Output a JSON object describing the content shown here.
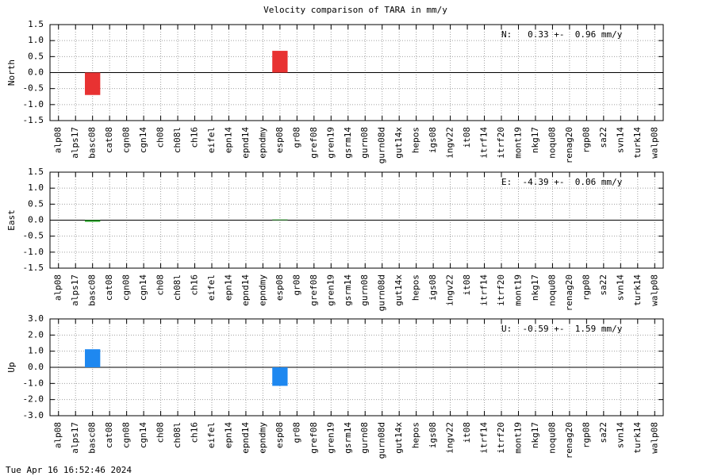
{
  "title": "Velocity comparison of TARA in mm/y",
  "timestamp": "Tue Apr 16 16:52:46 2024",
  "chart_data": [
    {
      "type": "bar",
      "ylabel": "North",
      "categories": [
        "alp08",
        "alps17",
        "basc08",
        "cat08",
        "cgn08",
        "cgn14",
        "ch08",
        "ch08l",
        "ch16",
        "eifel",
        "epn14",
        "epnd14",
        "epndmy",
        "esp08",
        "gr08",
        "gref08",
        "gren19",
        "gsrm14",
        "gurn08",
        "gurn08d",
        "gut14x",
        "hepos",
        "igs08",
        "ingv22",
        "it08",
        "itrf14",
        "itrf20",
        "mont19",
        "nkg17",
        "noqu08",
        "renag20",
        "rgp08",
        "sa22",
        "svn14",
        "turk14",
        "walp08"
      ],
      "values": [
        null,
        null,
        -0.7,
        null,
        null,
        null,
        null,
        null,
        null,
        null,
        null,
        null,
        null,
        0.68,
        null,
        null,
        null,
        null,
        null,
        null,
        null,
        null,
        null,
        null,
        null,
        null,
        null,
        null,
        null,
        null,
        null,
        null,
        null,
        null,
        null,
        null
      ],
      "color": "#e83232",
      "ylim": [
        -1.5,
        1.5
      ],
      "yticks": [
        -1.5,
        {
          "value": -1.0,
          "label": "-1.0"
        },
        -0.5,
        {
          "value": 0,
          "label": "0.0"
        },
        0.5,
        {
          "value": 1.0,
          "label": "1.0"
        },
        1.5
      ],
      "annotation": "N:   0.33 +-  0.96 mm/y",
      "grid": true
    },
    {
      "type": "bar",
      "ylabel": "East",
      "categories": [
        "alp08",
        "alps17",
        "basc08",
        "cat08",
        "cgn08",
        "cgn14",
        "ch08",
        "ch08l",
        "ch16",
        "eifel",
        "epn14",
        "epnd14",
        "epndmy",
        "esp08",
        "gr08",
        "gref08",
        "gren19",
        "gsrm14",
        "gurn08",
        "gurn08d",
        "gut14x",
        "hepos",
        "igs08",
        "ingv22",
        "it08",
        "itrf14",
        "itrf20",
        "mont19",
        "nkg17",
        "noqu08",
        "renag20",
        "rgp08",
        "sa22",
        "svn14",
        "turk14",
        "walp08"
      ],
      "values": [
        null,
        null,
        -0.05,
        null,
        null,
        null,
        null,
        null,
        null,
        null,
        null,
        null,
        null,
        0.02,
        null,
        null,
        null,
        null,
        null,
        null,
        null,
        null,
        null,
        null,
        null,
        null,
        null,
        null,
        null,
        null,
        null,
        null,
        null,
        null,
        null,
        null
      ],
      "color": "#22a022",
      "ylim": [
        -1.5,
        1.5
      ],
      "yticks": [
        -1.5,
        {
          "value": -1.0,
          "label": "-1.0"
        },
        -0.5,
        {
          "value": 0,
          "label": "0.0"
        },
        0.5,
        {
          "value": 1.0,
          "label": "1.0"
        },
        1.5
      ],
      "annotation": "E:  -4.39 +-  0.06 mm/y",
      "grid": true
    },
    {
      "type": "bar",
      "ylabel": "Up",
      "categories": [
        "alp08",
        "alps17",
        "basc08",
        "cat08",
        "cgn08",
        "cgn14",
        "ch08",
        "ch08l",
        "ch16",
        "eifel",
        "epn14",
        "epnd14",
        "epndmy",
        "esp08",
        "gr08",
        "gref08",
        "gren19",
        "gsrm14",
        "gurn08",
        "gurn08d",
        "gut14x",
        "hepos",
        "igs08",
        "ingv22",
        "it08",
        "itrf14",
        "itrf20",
        "mont19",
        "nkg17",
        "noqu08",
        "renag20",
        "rgp08",
        "sa22",
        "svn14",
        "turk14",
        "walp08"
      ],
      "values": [
        null,
        null,
        1.12,
        null,
        null,
        null,
        null,
        null,
        null,
        null,
        null,
        null,
        null,
        -1.15,
        null,
        null,
        null,
        null,
        null,
        null,
        null,
        null,
        null,
        null,
        null,
        null,
        null,
        null,
        null,
        null,
        null,
        null,
        null,
        null,
        null,
        null
      ],
      "color": "#1e88f0",
      "ylim": [
        -3.0,
        3.0
      ],
      "yticks": [
        {
          "value": -3.0,
          "label": "-3.0"
        },
        {
          "value": -2.0,
          "label": "-2.0"
        },
        {
          "value": -1.0,
          "label": "-1.0"
        },
        {
          "value": 0,
          "label": "0.0"
        },
        {
          "value": 1.0,
          "label": "1.0"
        },
        {
          "value": 2.0,
          "label": "2.0"
        },
        {
          "value": 3.0,
          "label": "3.0"
        }
      ],
      "annotation": "U:  -0.59 +-  1.59 mm/y",
      "grid": true
    }
  ]
}
